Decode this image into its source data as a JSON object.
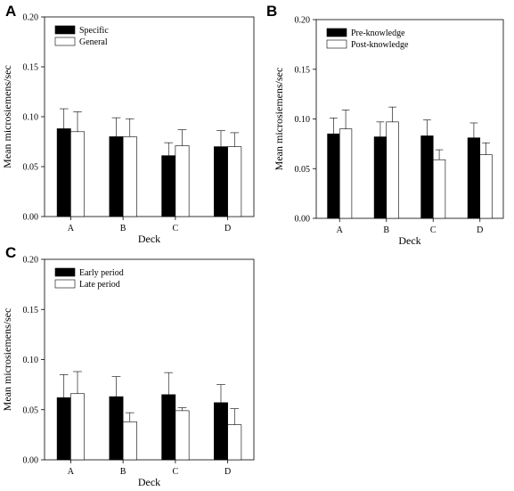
{
  "chart_data": [
    {
      "type": "bar",
      "panel_label": "A",
      "categories": [
        "A",
        "B",
        "C",
        "D"
      ],
      "series": [
        {
          "name": "Specific",
          "fill": "#000000",
          "values": [
            0.088,
            0.08,
            0.061,
            0.07
          ],
          "errors": [
            0.02,
            0.019,
            0.013,
            0.016
          ]
        },
        {
          "name": "General",
          "fill": "#ffffff",
          "values": [
            0.085,
            0.08,
            0.071,
            0.07
          ],
          "errors": [
            0.02,
            0.018,
            0.016,
            0.014
          ]
        }
      ],
      "xlabel": "Deck",
      "ylabel": "Mean microsiemens/sec",
      "ylim": [
        0,
        0.2
      ],
      "yticks": [
        "0.00",
        "0.05",
        "0.10",
        "0.15",
        "0.20"
      ],
      "legend_position": "top-left",
      "grid": false
    },
    {
      "type": "bar",
      "panel_label": "B",
      "categories": [
        "A",
        "B",
        "C",
        "D"
      ],
      "series": [
        {
          "name": "Pre-knowledge",
          "fill": "#000000",
          "values": [
            0.085,
            0.082,
            0.083,
            0.081
          ],
          "errors": [
            0.016,
            0.015,
            0.016,
            0.015
          ]
        },
        {
          "name": "Post-knowledge",
          "fill": "#ffffff",
          "values": [
            0.09,
            0.097,
            0.059,
            0.064
          ],
          "errors": [
            0.019,
            0.015,
            0.01,
            0.012
          ]
        }
      ],
      "xlabel": "Deck",
      "ylabel": "Mean microsiemens/sec",
      "ylim": [
        0,
        0.2
      ],
      "yticks": [
        "0.00",
        "0.05",
        "0.10",
        "0.15",
        "0.20"
      ],
      "legend_position": "top-left",
      "grid": false
    },
    {
      "type": "bar",
      "panel_label": "C",
      "categories": [
        "A",
        "B",
        "C",
        "D"
      ],
      "series": [
        {
          "name": "Early period",
          "fill": "#000000",
          "values": [
            0.062,
            0.063,
            0.065,
            0.057
          ],
          "errors": [
            0.023,
            0.02,
            0.022,
            0.018
          ]
        },
        {
          "name": "Late period",
          "fill": "#ffffff",
          "values": [
            0.066,
            0.038,
            0.049,
            0.035
          ],
          "errors": [
            0.022,
            0.009,
            0.003,
            0.016
          ]
        }
      ],
      "xlabel": "Deck",
      "ylabel": "Mean microsiemens/sec",
      "ylim": [
        0,
        0.2
      ],
      "yticks": [
        "0.00",
        "0.05",
        "0.10",
        "0.15",
        "0.20"
      ],
      "legend_position": "top-left",
      "grid": false
    }
  ]
}
